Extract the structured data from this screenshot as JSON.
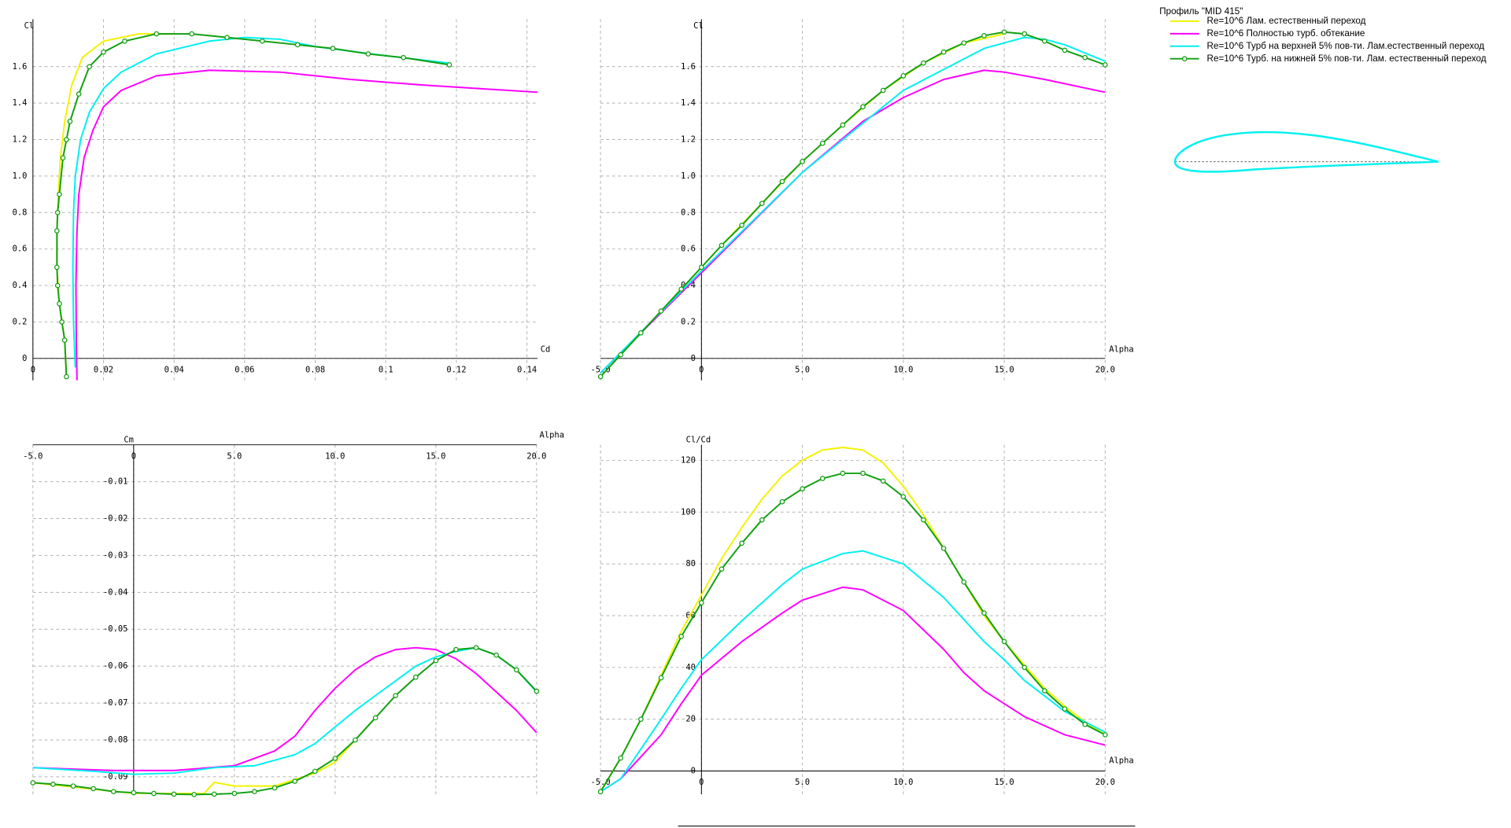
{
  "legend": {
    "title": "Профиль \"MID 415\"",
    "items": [
      {
        "name": "Re=10^6  Лам. естественный переход",
        "color": "#f2f200",
        "marker": false
      },
      {
        "name": "Re=10^6 Полностью турб. обтекание",
        "color": "#ff00ff",
        "marker": false
      },
      {
        "name": "Re=10^6 Турб на верхней 5% пов-ти. Лам.естественный переход",
        "color": "#00f0f0",
        "marker": false
      },
      {
        "name": "Re=10^6 Турб. на нижней 5% пов-ти. Лам. естественный переход",
        "color": "#10a010",
        "marker": true
      }
    ]
  },
  "chart_data": [
    {
      "type": "line",
      "x_label": "Cd",
      "y_label": "Cl",
      "grid": true,
      "xlim": [
        0,
        0.143
      ],
      "ylim": [
        -0.12,
        1.86
      ],
      "xticks": [
        0,
        0.02,
        0.04,
        0.06,
        0.08,
        0.1,
        0.12,
        0.14
      ],
      "yticks": [
        0,
        0.2,
        0.4,
        0.6,
        0.8,
        {
          "value": 1.0,
          "label": "1.0"
        },
        1.2,
        1.4,
        1.6
      ],
      "series": [
        {
          "color": "#f2f200",
          "markers": false,
          "x": [
            0.0095,
            0.009,
            0.0075,
            0.0068,
            0.0068,
            0.0072,
            0.0078,
            0.009,
            0.011,
            0.014,
            0.02,
            0.03,
            0.04
          ],
          "values": [
            -0.1,
            0.1,
            0.3,
            0.5,
            0.7,
            0.9,
            1.1,
            1.3,
            1.5,
            1.65,
            1.74,
            1.78,
            1.78
          ]
        },
        {
          "color": "#ff00ff",
          "markers": false,
          "x": [
            0.0125,
            0.0123,
            0.0122,
            0.0125,
            0.013,
            0.0145,
            0.017,
            0.02,
            0.025,
            0.035,
            0.05,
            0.07,
            0.09,
            0.11,
            0.143
          ],
          "values": [
            -0.12,
            0.1,
            0.4,
            0.7,
            0.9,
            1.1,
            1.25,
            1.38,
            1.47,
            1.55,
            1.58,
            1.57,
            1.53,
            1.5,
            1.46
          ]
        },
        {
          "color": "#00f0f0",
          "markers": false,
          "x": [
            0.012,
            0.0115,
            0.0113,
            0.0115,
            0.012,
            0.0135,
            0.016,
            0.02,
            0.025,
            0.035,
            0.05,
            0.06,
            0.07,
            0.08,
            0.1,
            0.118
          ],
          "values": [
            -0.05,
            0.2,
            0.5,
            0.8,
            1.0,
            1.2,
            1.35,
            1.48,
            1.57,
            1.67,
            1.74,
            1.76,
            1.75,
            1.71,
            1.66,
            1.62
          ]
        },
        {
          "color": "#10a010",
          "markers": true,
          "x": [
            0.0095,
            0.009,
            0.0082,
            0.0075,
            0.007,
            0.0068,
            0.0068,
            0.007,
            0.0075,
            0.0085,
            0.0095,
            0.0105,
            0.013,
            0.016,
            0.02,
            0.026,
            0.035,
            0.045,
            0.055,
            0.065,
            0.075,
            0.085,
            0.095,
            0.105,
            0.118
          ],
          "values": [
            -0.1,
            0.1,
            0.2,
            0.3,
            0.4,
            0.5,
            0.7,
            0.8,
            0.9,
            1.1,
            1.2,
            1.3,
            1.45,
            1.6,
            1.68,
            1.74,
            1.78,
            1.78,
            1.76,
            1.74,
            1.72,
            1.7,
            1.67,
            1.65,
            1.61
          ]
        }
      ]
    },
    {
      "type": "line",
      "x_label": "Alpha",
      "y_label": "Cl",
      "grid": true,
      "xlim": [
        -5,
        20
      ],
      "ylim": [
        -0.12,
        1.86
      ],
      "xticks": [
        {
          "value": -5,
          "label": "-5.0"
        },
        0,
        {
          "value": 5,
          "label": "5.0"
        },
        {
          "value": 10,
          "label": "10.0"
        },
        {
          "value": 15,
          "label": "15.0"
        },
        {
          "value": 20,
          "label": "20.0"
        }
      ],
      "yticks": [
        0,
        0.2,
        0.4,
        0.6,
        0.8,
        {
          "value": 1.0,
          "label": "1.0"
        },
        1.2,
        1.4,
        1.6
      ],
      "series": [
        {
          "color": "#f2f200",
          "markers": false,
          "x": [
            -5,
            -3,
            -1,
            1,
            3,
            5,
            7,
            9,
            11,
            13,
            15
          ],
          "values": [
            -0.1,
            0.14,
            0.38,
            0.62,
            0.85,
            1.08,
            1.28,
            1.47,
            1.62,
            1.73,
            1.78
          ]
        },
        {
          "color": "#ff00ff",
          "markers": false,
          "x": [
            -5,
            0,
            5,
            8,
            10,
            12,
            14,
            15,
            17,
            20
          ],
          "values": [
            -0.08,
            0.47,
            1.02,
            1.3,
            1.43,
            1.53,
            1.58,
            1.57,
            1.53,
            1.46
          ]
        },
        {
          "color": "#00f0f0",
          "markers": false,
          "x": [
            -5,
            0,
            5,
            10,
            14,
            16,
            17,
            18,
            20
          ],
          "values": [
            -0.08,
            0.48,
            1.02,
            1.47,
            1.7,
            1.76,
            1.75,
            1.72,
            1.63
          ]
        },
        {
          "color": "#10a010",
          "markers": true,
          "x": [
            -5,
            -4,
            -3,
            -2,
            -1,
            0,
            1,
            2,
            3,
            4,
            5,
            6,
            7,
            8,
            9,
            10,
            11,
            12,
            13,
            14,
            15,
            16,
            17,
            18,
            19,
            20
          ],
          "values": [
            -0.1,
            0.02,
            0.14,
            0.26,
            0.38,
            0.5,
            0.62,
            0.73,
            0.85,
            0.97,
            1.08,
            1.18,
            1.28,
            1.38,
            1.47,
            1.55,
            1.62,
            1.68,
            1.73,
            1.77,
            1.79,
            1.78,
            1.74,
            1.69,
            1.65,
            1.61
          ]
        }
      ]
    },
    {
      "type": "line",
      "x_label": "Alpha",
      "y_label": "Cm",
      "grid": true,
      "xlim": [
        -5,
        20
      ],
      "ylim": [
        -0.095,
        0
      ],
      "xticks": [
        {
          "value": -5,
          "label": "-5.0"
        },
        0,
        {
          "value": 5,
          "label": "5.0"
        },
        {
          "value": 10,
          "label": "10.0"
        },
        {
          "value": 15,
          "label": "15.0"
        },
        {
          "value": 20,
          "label": "20.0"
        }
      ],
      "yticks": [
        -0.01,
        -0.02,
        -0.03,
        -0.04,
        -0.05,
        -0.06,
        -0.07,
        -0.08,
        -0.09
      ],
      "series": [
        {
          "color": "#f2f200",
          "markers": false,
          "x": [
            -5,
            0,
            3.5,
            4,
            5,
            7,
            9,
            10,
            11,
            12
          ],
          "values": [
            -0.0916,
            -0.0945,
            -0.0945,
            -0.0915,
            -0.0925,
            -0.0925,
            -0.089,
            -0.086,
            -0.08,
            -0.074
          ]
        },
        {
          "color": "#ff00ff",
          "markers": false,
          "x": [
            -5,
            -1,
            2,
            5,
            7,
            8,
            9,
            10,
            11,
            12,
            13,
            14,
            15,
            16,
            17,
            18,
            19,
            20
          ],
          "values": [
            -0.0875,
            -0.0883,
            -0.0883,
            -0.087,
            -0.083,
            -0.079,
            -0.072,
            -0.066,
            -0.061,
            -0.0575,
            -0.0555,
            -0.055,
            -0.0555,
            -0.058,
            -0.062,
            -0.067,
            -0.072,
            -0.078
          ]
        },
        {
          "color": "#00f0f0",
          "markers": false,
          "x": [
            -5,
            -2,
            0,
            2,
            4,
            6,
            8,
            9,
            10,
            11,
            12,
            13,
            14,
            15,
            16,
            17,
            18,
            19,
            20
          ],
          "values": [
            -0.0875,
            -0.0885,
            -0.0893,
            -0.089,
            -0.0875,
            -0.087,
            -0.084,
            -0.081,
            -0.0765,
            -0.072,
            -0.068,
            -0.064,
            -0.06,
            -0.0575,
            -0.056,
            -0.055,
            -0.057,
            -0.061,
            -0.067
          ]
        },
        {
          "color": "#10a010",
          "markers": true,
          "x": [
            -5,
            -4,
            -3,
            -2,
            -1,
            0,
            1,
            2,
            3,
            4,
            5,
            6,
            7,
            8,
            9,
            10,
            11,
            12,
            13,
            14,
            15,
            16,
            17,
            18,
            19,
            20
          ],
          "values": [
            -0.0916,
            -0.092,
            -0.0925,
            -0.0932,
            -0.094,
            -0.0943,
            -0.0945,
            -0.0947,
            -0.0948,
            -0.0947,
            -0.0945,
            -0.094,
            -0.093,
            -0.0912,
            -0.0885,
            -0.085,
            -0.08,
            -0.074,
            -0.068,
            -0.063,
            -0.0585,
            -0.0555,
            -0.055,
            -0.057,
            -0.061,
            -0.0668
          ]
        }
      ]
    },
    {
      "type": "line",
      "x_label": "Alpha",
      "y_label": "Cl/Cd",
      "grid": true,
      "xlim": [
        -5,
        20
      ],
      "ylim": [
        -9,
        126
      ],
      "xticks": [
        {
          "value": -5,
          "label": "-5.0"
        },
        0,
        {
          "value": 5,
          "label": "5.0"
        },
        {
          "value": 10,
          "label": "10.0"
        },
        {
          "value": 15,
          "label": "15.0"
        },
        {
          "value": 20,
          "label": "20.0"
        }
      ],
      "yticks": [
        0,
        20,
        40,
        60,
        80,
        100,
        120
      ],
      "series": [
        {
          "color": "#f2f200",
          "markers": false,
          "x": [
            -5,
            -4,
            -3,
            -2,
            -1,
            0,
            1,
            2,
            3,
            4,
            5,
            6,
            7,
            8,
            9,
            10,
            11,
            12,
            13,
            14,
            15,
            16,
            17,
            18,
            19,
            20
          ],
          "values": [
            -8,
            5,
            20,
            37,
            54,
            68,
            82,
            94,
            105,
            114,
            120,
            124,
            125,
            124,
            119,
            110,
            99,
            86,
            73,
            60,
            50,
            41,
            32,
            25,
            19,
            14
          ]
        },
        {
          "color": "#ff00ff",
          "markers": false,
          "x": [
            -5,
            -4,
            -2,
            -1,
            0,
            2,
            4,
            5,
            7,
            8,
            10,
            12,
            13,
            14,
            15,
            16,
            18,
            20
          ],
          "values": [
            -8,
            -3,
            14,
            26,
            37,
            50,
            61,
            66,
            71,
            70,
            62,
            47,
            38,
            31,
            26,
            21,
            14,
            10
          ]
        },
        {
          "color": "#00f0f0",
          "markers": false,
          "x": [
            -5,
            -4,
            -2,
            -1,
            0,
            2,
            4,
            5,
            7,
            8,
            10,
            12,
            14,
            15,
            16,
            18,
            20
          ],
          "values": [
            -8,
            -3,
            20,
            32,
            43,
            58,
            72,
            78,
            84,
            85,
            80,
            67,
            50,
            43,
            35,
            23,
            15
          ]
        },
        {
          "color": "#10a010",
          "markers": true,
          "x": [
            -5,
            -4,
            -3,
            -2,
            -1,
            0,
            1,
            2,
            3,
            4,
            5,
            6,
            7,
            8,
            9,
            10,
            11,
            12,
            13,
            14,
            15,
            16,
            17,
            18,
            19,
            20
          ],
          "values": [
            -8,
            5,
            20,
            36,
            52,
            65,
            78,
            88,
            97,
            104,
            109,
            113,
            115,
            115,
            112,
            106,
            97,
            86,
            73,
            61,
            50,
            40,
            31,
            24,
            18,
            14
          ]
        }
      ]
    }
  ]
}
